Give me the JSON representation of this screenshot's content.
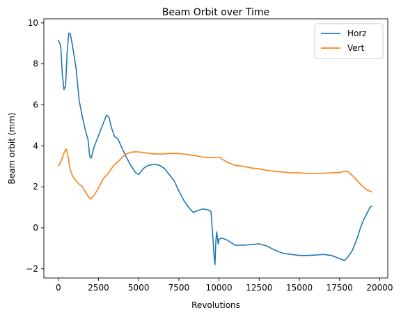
{
  "chart_data": {
    "type": "line",
    "title": "Beam Orbit over Time",
    "xlabel": "Revolutions",
    "ylabel": "Beam orbit (mm)",
    "xlim": [
      -900,
      20500
    ],
    "ylim": [
      -2.45,
      10.2
    ],
    "xticks": [
      0,
      2500,
      5000,
      7500,
      10000,
      12500,
      15000,
      17500,
      20000
    ],
    "yticks": [
      -2,
      0,
      2,
      4,
      6,
      8,
      10
    ],
    "grid": false,
    "legend_position": "top-right",
    "series": [
      {
        "name": "Horz",
        "color": "#1f77b4",
        "points": [
          [
            0,
            9.15
          ],
          [
            150,
            8.9
          ],
          [
            250,
            7.5
          ],
          [
            350,
            6.75
          ],
          [
            450,
            6.9
          ],
          [
            550,
            8.6
          ],
          [
            650,
            9.5
          ],
          [
            750,
            9.45
          ],
          [
            900,
            8.8
          ],
          [
            1100,
            7.8
          ],
          [
            1300,
            6.2
          ],
          [
            1500,
            5.4
          ],
          [
            1700,
            4.7
          ],
          [
            1850,
            4.3
          ],
          [
            1950,
            3.5
          ],
          [
            2050,
            3.4
          ],
          [
            2200,
            3.9
          ],
          [
            2400,
            4.3
          ],
          [
            2600,
            4.7
          ],
          [
            2800,
            5.1
          ],
          [
            3000,
            5.5
          ],
          [
            3150,
            5.4
          ],
          [
            3300,
            4.9
          ],
          [
            3500,
            4.45
          ],
          [
            3700,
            4.35
          ],
          [
            3900,
            4.0
          ],
          [
            4200,
            3.5
          ],
          [
            4500,
            3.05
          ],
          [
            4800,
            2.7
          ],
          [
            5000,
            2.6
          ],
          [
            5300,
            2.9
          ],
          [
            5600,
            3.05
          ],
          [
            6000,
            3.1
          ],
          [
            6300,
            3.05
          ],
          [
            6600,
            2.9
          ],
          [
            6900,
            2.6
          ],
          [
            7200,
            2.3
          ],
          [
            7500,
            1.8
          ],
          [
            7800,
            1.35
          ],
          [
            8100,
            1.0
          ],
          [
            8400,
            0.75
          ],
          [
            8700,
            0.85
          ],
          [
            9000,
            0.92
          ],
          [
            9300,
            0.88
          ],
          [
            9500,
            0.8
          ],
          [
            9600,
            -0.3
          ],
          [
            9700,
            -1.45
          ],
          [
            9750,
            -1.8
          ],
          [
            9800,
            -0.7
          ],
          [
            9850,
            -0.2
          ],
          [
            9950,
            -0.8
          ],
          [
            10000,
            -0.55
          ],
          [
            10200,
            -0.5
          ],
          [
            10500,
            -0.6
          ],
          [
            11000,
            -0.85
          ],
          [
            11500,
            -0.85
          ],
          [
            12000,
            -0.82
          ],
          [
            12500,
            -0.78
          ],
          [
            13000,
            -0.9
          ],
          [
            13500,
            -1.1
          ],
          [
            14000,
            -1.25
          ],
          [
            14500,
            -1.3
          ],
          [
            15000,
            -1.35
          ],
          [
            15500,
            -1.35
          ],
          [
            16000,
            -1.33
          ],
          [
            16500,
            -1.3
          ],
          [
            17000,
            -1.35
          ],
          [
            17500,
            -1.5
          ],
          [
            17800,
            -1.6
          ],
          [
            18000,
            -1.45
          ],
          [
            18300,
            -1.1
          ],
          [
            18600,
            -0.5
          ],
          [
            18800,
            0.0
          ],
          [
            19000,
            0.4
          ],
          [
            19200,
            0.7
          ],
          [
            19400,
            1.0
          ],
          [
            19500,
            1.05
          ]
        ]
      },
      {
        "name": "Vert",
        "color": "#ff7f0e",
        "points": [
          [
            0,
            3.0
          ],
          [
            200,
            3.3
          ],
          [
            400,
            3.75
          ],
          [
            500,
            3.85
          ],
          [
            600,
            3.5
          ],
          [
            750,
            2.8
          ],
          [
            900,
            2.5
          ],
          [
            1200,
            2.2
          ],
          [
            1500,
            2.0
          ],
          [
            1800,
            1.6
          ],
          [
            2000,
            1.4
          ],
          [
            2200,
            1.55
          ],
          [
            2500,
            1.95
          ],
          [
            2800,
            2.4
          ],
          [
            3100,
            2.65
          ],
          [
            3400,
            3.0
          ],
          [
            3800,
            3.3
          ],
          [
            4200,
            3.6
          ],
          [
            4600,
            3.7
          ],
          [
            5000,
            3.7
          ],
          [
            5500,
            3.65
          ],
          [
            6000,
            3.6
          ],
          [
            6500,
            3.6
          ],
          [
            7000,
            3.63
          ],
          [
            7500,
            3.62
          ],
          [
            8000,
            3.58
          ],
          [
            8500,
            3.52
          ],
          [
            9000,
            3.45
          ],
          [
            9500,
            3.42
          ],
          [
            10000,
            3.45
          ],
          [
            10500,
            3.2
          ],
          [
            11000,
            3.05
          ],
          [
            11500,
            3.0
          ],
          [
            12000,
            2.92
          ],
          [
            12500,
            2.88
          ],
          [
            13000,
            2.8
          ],
          [
            13500,
            2.75
          ],
          [
            14000,
            2.72
          ],
          [
            14500,
            2.68
          ],
          [
            15000,
            2.68
          ],
          [
            15500,
            2.65
          ],
          [
            16000,
            2.65
          ],
          [
            16500,
            2.66
          ],
          [
            17000,
            2.68
          ],
          [
            17500,
            2.7
          ],
          [
            17800,
            2.75
          ],
          [
            18000,
            2.75
          ],
          [
            18300,
            2.55
          ],
          [
            18600,
            2.3
          ],
          [
            18900,
            2.05
          ],
          [
            19200,
            1.85
          ],
          [
            19500,
            1.75
          ]
        ]
      }
    ]
  }
}
